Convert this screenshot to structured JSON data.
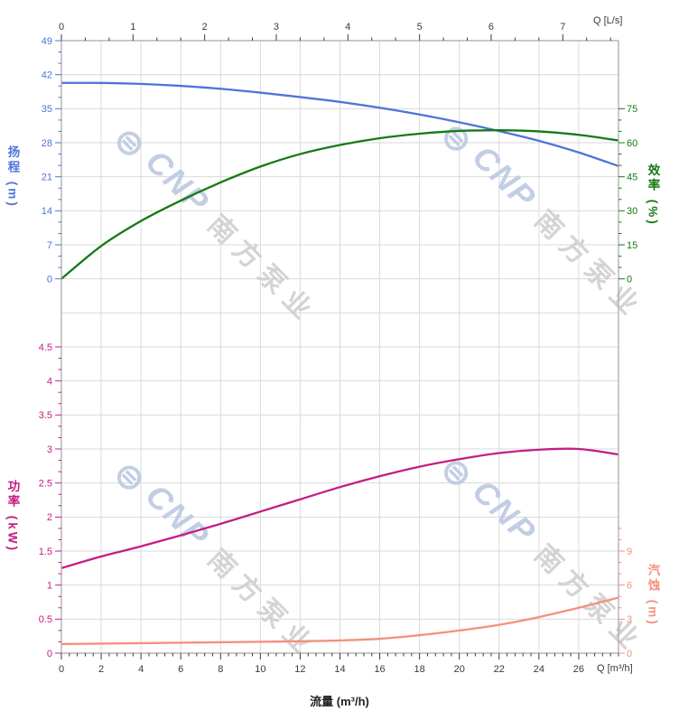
{
  "watermark": {
    "logo": "⊜",
    "brand": "CNP",
    "company": "南方泵业"
  },
  "chart_data": {
    "type": "line",
    "title": "",
    "grid_color": "#dadada",
    "border_color": "#acacac",
    "x": [
      0,
      2,
      4,
      6,
      8,
      10,
      12,
      14,
      16,
      18,
      20,
      22,
      24,
      26,
      28
    ],
    "series": [
      {
        "id": "head",
        "name": "扬程",
        "axis": "head",
        "color": "#5074d8",
        "values": [
          40.3,
          40.3,
          40.1,
          39.7,
          39.1,
          38.3,
          37.4,
          36.4,
          35.2,
          33.8,
          32.2,
          30.4,
          28.4,
          26.0,
          23.2
        ]
      },
      {
        "id": "efficiency",
        "name": "效率",
        "axis": "eff",
        "color": "#157a15",
        "values": [
          0,
          14.5,
          25.5,
          34.5,
          42.5,
          49.5,
          55,
          59,
          62,
          64,
          65.2,
          65.5,
          65,
          63.5,
          61
        ]
      },
      {
        "id": "power",
        "name": "功率",
        "axis": "power",
        "color": "#c41e82",
        "values": [
          1.25,
          1.42,
          1.57,
          1.73,
          1.9,
          2.08,
          2.26,
          2.44,
          2.6,
          2.74,
          2.85,
          2.94,
          2.99,
          3.0,
          2.92
        ]
      },
      {
        "id": "npsh",
        "name": "汽蚀",
        "axis": "npsh",
        "color": "#f4907c",
        "values": [
          0.8,
          0.84,
          0.88,
          0.92,
          0.96,
          1.0,
          1.05,
          1.12,
          1.27,
          1.58,
          2.0,
          2.5,
          3.18,
          4.0,
          4.9
        ]
      }
    ],
    "axes": {
      "x_top": {
        "unit": "Q [L/s]",
        "color": "#3a3a3a",
        "q_per_unit": 3.6,
        "ticks": [
          0,
          1,
          2,
          3,
          4,
          5,
          6,
          7
        ],
        "minor_divisions": 3
      },
      "x_bottom": {
        "label": "流量 (m³/h)",
        "unit": "Q [m³/h]",
        "color": "#3a3a3a",
        "min": 0,
        "max": 28,
        "ticks": [
          0,
          2,
          4,
          6,
          8,
          10,
          12,
          14,
          16,
          18,
          20,
          22,
          24,
          26
        ],
        "minor_divisions": 5
      },
      "y_head": {
        "label": "扬程 (m)",
        "color": "#5074d8",
        "min": 0,
        "max": 49,
        "ticks": [
          0,
          7,
          14,
          21,
          28,
          35,
          42,
          49
        ],
        "minor_divisions": 3
      },
      "y_eff": {
        "label": "效率 (%)",
        "color": "#157a15",
        "min": 0,
        "ticks": [
          0,
          15,
          30,
          45,
          60,
          75
        ],
        "minor_divisions": 3,
        "minor_extent": 75
      },
      "y_power": {
        "label": "功率 (kW)",
        "color": "#c41e82",
        "min": 0,
        "ticks": [
          0,
          0.5,
          1,
          1.5,
          2,
          2.5,
          3,
          3.5,
          4,
          4.5
        ],
        "minor_divisions": 3,
        "minor_extent": 4.5
      },
      "y_npsh": {
        "label": "汽蚀 (m)",
        "color": "#f4907c",
        "min": 0,
        "ticks": [
          0,
          3,
          6,
          9
        ],
        "minor_divisions": 3,
        "minor_extent": 11
      }
    }
  }
}
